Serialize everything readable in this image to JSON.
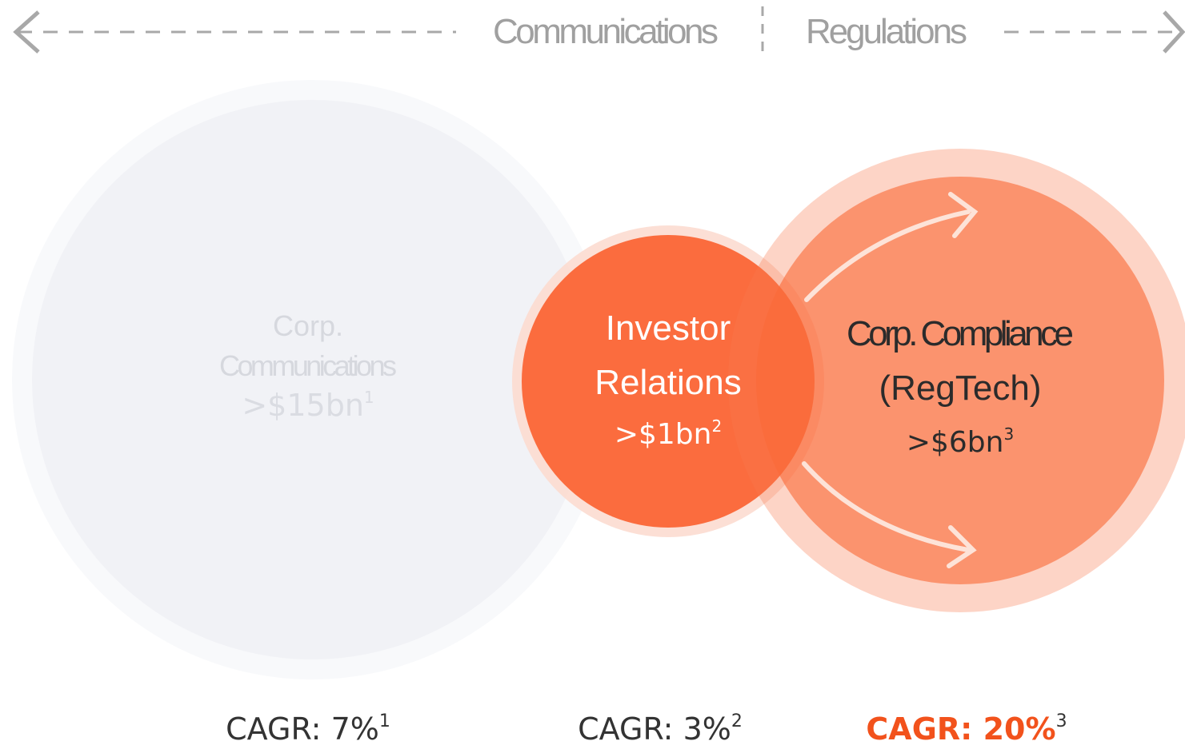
{
  "header": {
    "left": "Communications",
    "right": "Regulations"
  },
  "circles": [
    {
      "lines": [
        "Corp.",
        "Communications"
      ],
      "size": ">$15bn",
      "note": "1"
    },
    {
      "lines": [
        "Investor",
        "Relations"
      ],
      "size": ">$1bn",
      "note": "2"
    },
    {
      "lines": [
        "Corp. Compliance",
        "(RegTech)"
      ],
      "size": ">$6bn",
      "note": "3"
    }
  ],
  "growth": [
    {
      "label": "CAGR: 7%",
      "note": "1"
    },
    {
      "label": "CAGR: 3%",
      "note": "2"
    },
    {
      "label": "CAGR: 20%",
      "note": "3"
    }
  ]
}
